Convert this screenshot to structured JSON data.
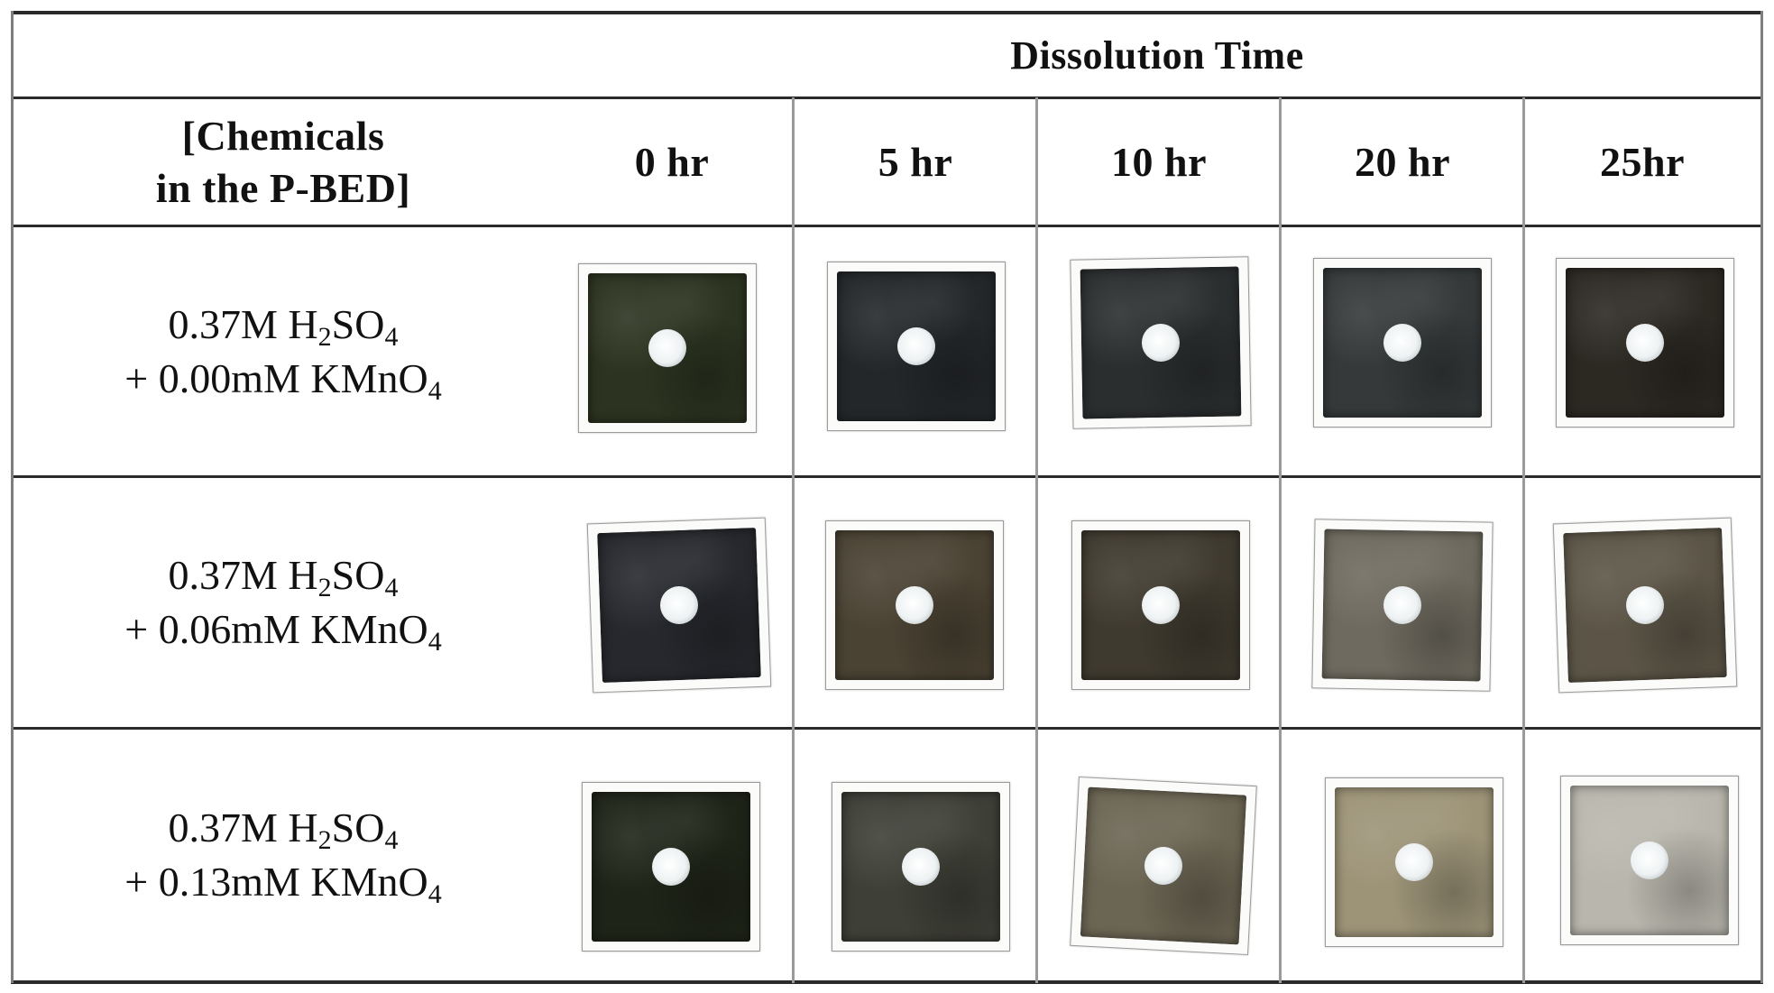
{
  "table": {
    "group_header": "Dissolution Time",
    "row_header_line1": "[Chemicals",
    "row_header_line2": "in the P-BED]",
    "time_columns": [
      "0 hr",
      "5 hr",
      "10 hr",
      "20 hr",
      "25hr"
    ],
    "rows": [
      {
        "acid": "0.37M H",
        "acid_sub": "2",
        "acid_tail": "SO",
        "acid_tail_sub": "4",
        "oxidant": "+ 0.00mM KMnO",
        "oxidant_sub": "4"
      },
      {
        "acid": "0.37M H",
        "acid_sub": "2",
        "acid_tail": "SO",
        "acid_tail_sub": "4",
        "oxidant": "+ 0.06mM KMnO",
        "oxidant_sub": "4"
      },
      {
        "acid": "0.37M H",
        "acid_sub": "2",
        "acid_tail": "SO",
        "acid_tail_sub": "4",
        "oxidant": "+ 0.13mM KMnO",
        "oxidant_sub": "4"
      }
    ],
    "sample_colors": [
      [
        "#2c3320",
        "#24272a",
        "#2b2e2f",
        "#35393a",
        "#2c2822"
      ],
      [
        "#26282d",
        "#4a4233",
        "#3f3a2f",
        "#6e6a5f",
        "#5c5547"
      ],
      [
        "#1f2418",
        "#3e3f36",
        "#6b6553",
        "#9d9478",
        "#b9b7ad"
      ]
    ]
  }
}
